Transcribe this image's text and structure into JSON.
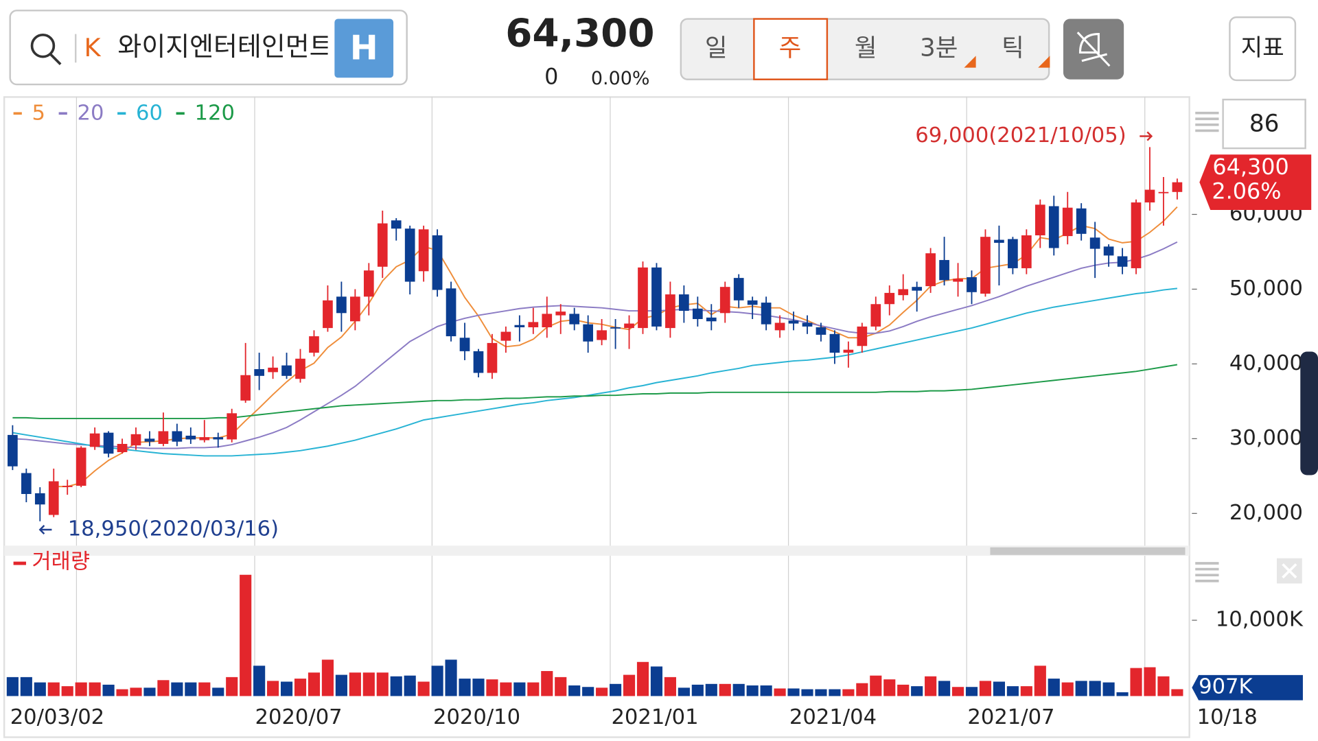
{
  "header": {
    "search_prefix": "K",
    "stock_name": "와이지엔터테인먼트",
    "market_badge": "H",
    "price": "64,300",
    "change": "0",
    "change_rate": "0.00%",
    "tabs": [
      "일",
      "주",
      "월",
      "3분",
      "틱"
    ],
    "selected_tab": 1,
    "indicator_button": "지표"
  },
  "chart_controls": {
    "visible_count": 86
  },
  "chart_data": [
    {
      "type": "candlestick",
      "categories": [
        "20/03/02",
        null,
        null,
        null,
        null,
        null,
        null,
        null,
        null,
        null,
        null,
        null,
        null,
        null,
        null,
        null,
        null,
        null,
        "2020/07",
        null,
        null,
        null,
        null,
        null,
        null,
        null,
        null,
        null,
        null,
        null,
        null,
        "2020/10",
        null,
        null,
        null,
        null,
        null,
        null,
        null,
        null,
        null,
        null,
        null,
        null,
        "2021/01",
        null,
        null,
        null,
        null,
        null,
        null,
        null,
        null,
        null,
        null,
        null,
        null,
        "2021/04",
        null,
        null,
        null,
        null,
        null,
        null,
        null,
        null,
        null,
        null,
        null,
        null,
        "2021/07",
        null,
        null,
        null,
        null,
        null,
        null,
        null,
        null,
        null,
        null,
        null,
        null,
        null,
        null,
        "10/18"
      ],
      "open": [
        30500,
        25400,
        22700,
        19800,
        23600,
        23700,
        28900,
        30800,
        28200,
        29100,
        30000,
        29300,
        31000,
        30400,
        29800,
        30200,
        29900,
        35100,
        39300,
        38900,
        39800,
        38000,
        41500,
        44800,
        49000,
        45700,
        49000,
        53000,
        59200,
        58100,
        52400,
        57200,
        50100,
        43500,
        41700,
        38800,
        43100,
        45200,
        44900,
        44900,
        46500,
        46700,
        45300,
        43200,
        44900,
        44800,
        44800,
        52900,
        44800,
        49300,
        47400,
        46200,
        46800,
        51500,
        48500,
        48200,
        44500,
        45800,
        45500,
        44900,
        44000,
        41500,
        42400,
        45000,
        48000,
        49200,
        50300,
        50400,
        53900,
        51000,
        51600,
        49400,
        56600,
        56700,
        52800,
        57200,
        61100,
        57100,
        60800,
        56900,
        55700,
        54400,
        52800,
        61600,
        62900,
        63000
      ],
      "high": [
        31800,
        26000,
        23500,
        26000,
        24500,
        29000,
        31500,
        31000,
        30000,
        31500,
        31000,
        33500,
        32000,
        31500,
        32500,
        30800,
        34000,
        42800,
        41500,
        41000,
        41500,
        42000,
        44500,
        50500,
        51000,
        50000,
        53500,
        60500,
        59500,
        58500,
        58500,
        58000,
        51000,
        45500,
        42000,
        44000,
        45000,
        46500,
        47500,
        49000,
        48000,
        47500,
        46500,
        46000,
        46000,
        46500,
        53700,
        53500,
        51000,
        50500,
        49000,
        48000,
        51000,
        52000,
        49000,
        49000,
        46500,
        47000,
        46500,
        45500,
        44500,
        43000,
        45500,
        49000,
        50500,
        52000,
        51000,
        55500,
        57000,
        53500,
        52500,
        58000,
        58500,
        57000,
        58000,
        62000,
        62500,
        63000,
        61500,
        59000,
        56000,
        55500,
        62000,
        69000,
        65000,
        64800
      ],
      "low": [
        25800,
        21500,
        18950,
        19500,
        22500,
        23500,
        28500,
        27500,
        28000,
        28500,
        29000,
        29000,
        29000,
        29300,
        29500,
        28800,
        29500,
        34800,
        36500,
        38000,
        38000,
        37500,
        41000,
        44300,
        44300,
        44500,
        46500,
        51500,
        56500,
        49300,
        51000,
        49000,
        43000,
        40500,
        38200,
        38000,
        41500,
        43000,
        44000,
        43500,
        44000,
        44500,
        41500,
        42500,
        42000,
        42000,
        44000,
        44500,
        43500,
        45500,
        45000,
        44500,
        45500,
        47500,
        46000,
        44500,
        43500,
        44500,
        44000,
        43000,
        40000,
        39500,
        41500,
        44500,
        46500,
        48500,
        47000,
        49500,
        50500,
        49000,
        48000,
        49000,
        50500,
        52000,
        52000,
        55500,
        54500,
        56000,
        56500,
        51500,
        53000,
        52000,
        52000,
        60500,
        58500,
        62000
      ],
      "close": [
        26300,
        22600,
        21200,
        24300,
        23700,
        28800,
        30700,
        28000,
        29300,
        30600,
        29600,
        31000,
        29600,
        29900,
        30200,
        29900,
        33400,
        38500,
        38400,
        39500,
        38400,
        40700,
        43700,
        48500,
        46800,
        49000,
        52500,
        58800,
        58100,
        51000,
        58000,
        49900,
        43700,
        41700,
        38800,
        42800,
        44300,
        44900,
        45600,
        46700,
        47000,
        45300,
        43000,
        44500,
        44800,
        45400,
        52900,
        45000,
        49300,
        47100,
        46000,
        45700,
        50300,
        48500,
        47900,
        45300,
        45500,
        45400,
        45000,
        43900,
        41500,
        41900,
        45000,
        48000,
        49500,
        50000,
        49800,
        54800,
        51200,
        51400,
        49600,
        57000,
        56200,
        52800,
        57200,
        61300,
        55500,
        60900,
        57400,
        55400,
        54500,
        53000,
        61600,
        63300,
        63000,
        64300
      ],
      "up_color": "#e3262c",
      "down_color": "#0b3d91",
      "moving_averages": [
        {
          "name": "5",
          "color": "#ef8d3a",
          "values": [
            null,
            null,
            null,
            23600,
            23600,
            24100,
            25700,
            27100,
            28100,
            29500,
            29600,
            29700,
            30000,
            30100,
            30100,
            30100,
            30600,
            32400,
            34100,
            35900,
            37600,
            39100,
            40100,
            42200,
            43600,
            45700,
            48100,
            51100,
            53000,
            53900,
            55700,
            55200,
            52100,
            48900,
            46400,
            43400,
            42300,
            42500,
            43300,
            44900,
            45700,
            45900,
            45500,
            45300,
            44900,
            44600,
            46100,
            46500,
            47500,
            47900,
            48100,
            46600,
            47700,
            47500,
            47700,
            47500,
            47500,
            46500,
            45800,
            45000,
            44300,
            43500,
            43500,
            44100,
            45200,
            46900,
            48500,
            50400,
            51100,
            51400,
            51400,
            52800,
            53100,
            53400,
            54600,
            56900,
            56600,
            57500,
            58500,
            58100,
            56700,
            56200,
            56400,
            57600,
            59100,
            61000
          ]
        },
        {
          "name": "20",
          "color": "#8b7bc4",
          "values": [
            30000,
            29900,
            29700,
            29500,
            29300,
            29200,
            29100,
            29000,
            28900,
            28800,
            28700,
            28700,
            28700,
            28800,
            28800,
            28900,
            29200,
            29700,
            30200,
            30800,
            31500,
            32500,
            33600,
            34700,
            35800,
            37000,
            38500,
            40000,
            41500,
            43000,
            44000,
            45000,
            45600,
            46100,
            46500,
            46800,
            47100,
            47400,
            47600,
            47700,
            47800,
            47700,
            47600,
            47500,
            47300,
            47100,
            47100,
            47100,
            47200,
            47300,
            47200,
            47100,
            47000,
            46900,
            46700,
            46500,
            46200,
            45900,
            45500,
            45100,
            44700,
            44300,
            44100,
            44100,
            44400,
            45000,
            45700,
            46300,
            46800,
            47300,
            47800,
            48400,
            49000,
            49700,
            50400,
            51000,
            51600,
            52200,
            52800,
            53200,
            53500,
            53600,
            54000,
            54600,
            55400,
            56300
          ]
        },
        {
          "name": "60",
          "color": "#27b3d4",
          "values": [
            30800,
            30500,
            30200,
            29900,
            29600,
            29300,
            29000,
            28800,
            28600,
            28400,
            28200,
            28000,
            27900,
            27800,
            27700,
            27700,
            27700,
            27800,
            27900,
            28000,
            28200,
            28400,
            28700,
            29000,
            29400,
            29800,
            30300,
            30800,
            31300,
            31900,
            32500,
            32800,
            33100,
            33400,
            33700,
            34000,
            34300,
            34600,
            34800,
            35100,
            35300,
            35500,
            35800,
            36100,
            36400,
            36800,
            37100,
            37500,
            37800,
            38100,
            38400,
            38800,
            39100,
            39400,
            39800,
            40000,
            40200,
            40400,
            40500,
            40700,
            40900,
            41200,
            41600,
            42000,
            42400,
            42800,
            43200,
            43600,
            44000,
            44400,
            44800,
            45300,
            45800,
            46300,
            46800,
            47200,
            47600,
            47900,
            48200,
            48500,
            48800,
            49100,
            49400,
            49600,
            49900,
            50100
          ]
        },
        {
          "name": "120",
          "color": "#1c9a48",
          "values": [
            32800,
            32800,
            32700,
            32700,
            32700,
            32700,
            32700,
            32700,
            32700,
            32700,
            32700,
            32700,
            32700,
            32700,
            32700,
            32800,
            32800,
            33000,
            33200,
            33400,
            33600,
            33800,
            34000,
            34200,
            34400,
            34500,
            34600,
            34700,
            34800,
            34900,
            35000,
            35100,
            35100,
            35200,
            35200,
            35300,
            35400,
            35400,
            35500,
            35600,
            35600,
            35700,
            35700,
            35800,
            35800,
            35900,
            36000,
            36000,
            36100,
            36100,
            36100,
            36200,
            36200,
            36200,
            36200,
            36200,
            36200,
            36200,
            36200,
            36200,
            36200,
            36200,
            36200,
            36200,
            36300,
            36300,
            36300,
            36400,
            36400,
            36500,
            36600,
            36800,
            37000,
            37200,
            37400,
            37600,
            37800,
            38000,
            38200,
            38400,
            38600,
            38800,
            39000,
            39300,
            39600,
            39900
          ]
        }
      ],
      "ylim": [
        15800,
        75700
      ],
      "yticks": [
        {
          "value": 20000,
          "label": "20,000"
        },
        {
          "value": 30000,
          "label": "30,000"
        },
        {
          "value": 40000,
          "label": "40,000"
        },
        {
          "value": 50000,
          "label": "50,000"
        },
        {
          "value": 60000,
          "label": "60,000"
        }
      ],
      "annotations": {
        "high": "69,000(2021/10/05)",
        "low": "18,950(2020/03/16)"
      },
      "last_price_label": "64,300",
      "last_change_label": "2.06%"
    },
    {
      "type": "bar",
      "name": "거래량",
      "legend_color": "#e3262c",
      "values": [
        2500,
        2500,
        1800,
        1800,
        1300,
        1800,
        1800,
        1500,
        900,
        1100,
        1100,
        2100,
        1800,
        1800,
        1800,
        1100,
        2500,
        16000,
        4000,
        2000,
        1900,
        2300,
        3100,
        4800,
        2800,
        3100,
        3100,
        3100,
        2600,
        2700,
        1900,
        4000,
        4800,
        2300,
        2300,
        2200,
        1800,
        1800,
        1800,
        3300,
        2500,
        1400,
        1200,
        1100,
        1600,
        2800,
        4500,
        3900,
        2500,
        1100,
        1500,
        1600,
        1600,
        1600,
        1400,
        1400,
        1000,
        1000,
        900,
        900,
        900,
        900,
        1700,
        2700,
        2200,
        1500,
        1300,
        2600,
        2000,
        1200,
        1200,
        2000,
        1900,
        1300,
        1300,
        4000,
        2300,
        1800,
        2000,
        2000,
        1800,
        500,
        3700,
        3800,
        2600,
        907
      ],
      "value_labels": [
        null,
        null,
        null,
        null,
        null,
        null,
        null,
        null,
        null,
        null,
        null,
        null,
        null,
        null,
        null,
        null,
        null,
        null,
        null,
        null,
        null,
        null,
        null,
        null,
        null,
        null,
        null,
        null,
        null,
        null,
        null,
        null,
        null,
        null,
        null,
        null,
        null,
        null,
        null,
        null,
        null,
        null,
        null,
        null,
        null,
        null,
        null,
        null,
        null,
        null,
        null,
        null,
        null,
        null,
        null,
        null,
        null,
        null,
        null,
        null,
        null,
        null,
        null,
        null,
        null,
        null,
        null,
        null,
        null,
        null,
        null,
        null,
        null,
        null,
        null,
        null,
        null,
        null,
        null,
        null,
        null,
        null,
        null,
        null,
        null,
        "907K"
      ],
      "ylim": [
        0,
        18400
      ],
      "yticks": [
        {
          "value": 10000,
          "label": "10,000K"
        }
      ]
    }
  ]
}
